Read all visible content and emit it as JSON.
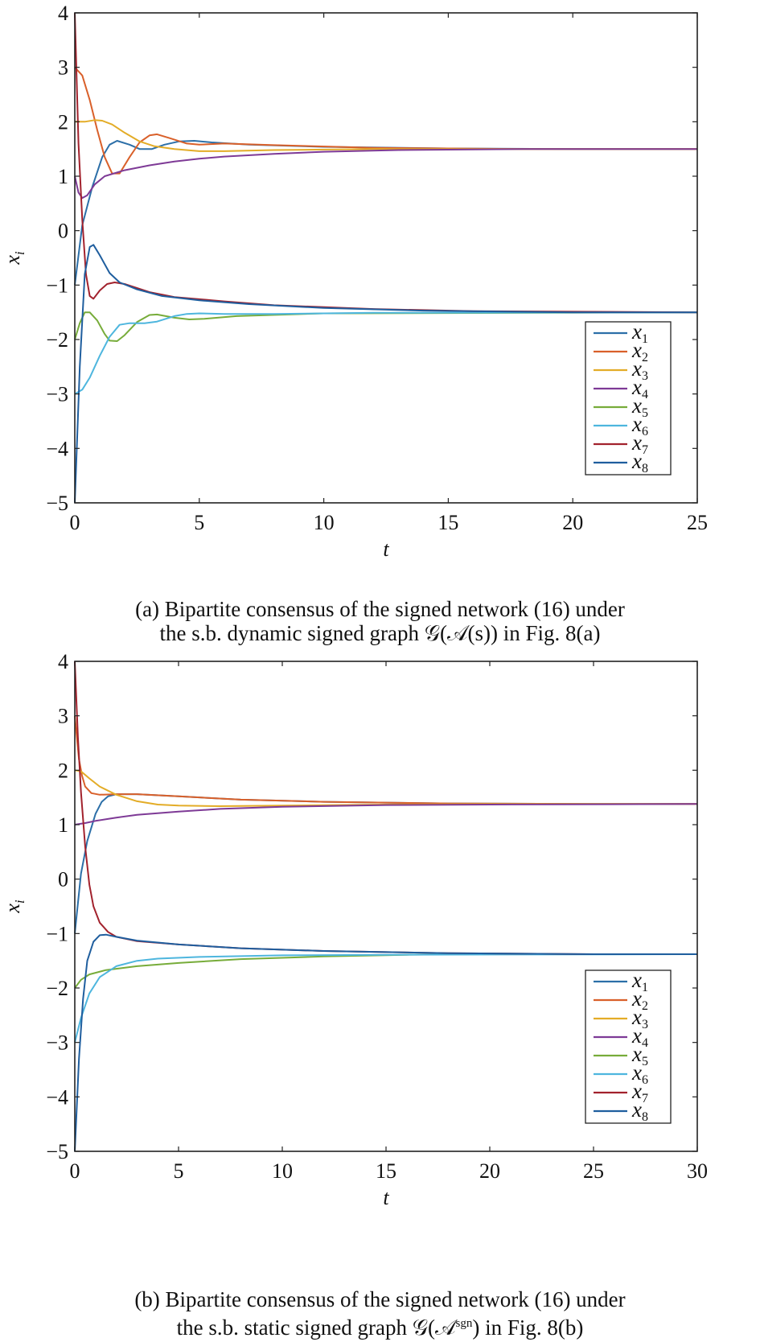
{
  "chart_data": [
    {
      "type": "line",
      "xlabel": "t",
      "ylabel": "x",
      "ylabel_sub": "i",
      "xlim": [
        0,
        25
      ],
      "ylim": [
        -5,
        4
      ],
      "xticks": [
        0,
        5,
        10,
        15,
        20,
        25
      ],
      "yticks": [
        -5,
        -4,
        -3,
        -2,
        -1,
        0,
        1,
        2,
        3,
        4
      ],
      "grid": false,
      "legend_position": "bottom-right",
      "caption_line1": "(a) Bipartite consensus of the signed network (16) under",
      "caption_line2": "the s.b. dynamic signed graph 𝒢(𝒜(s)) in Fig. 8(a)",
      "series": [
        {
          "name": "x",
          "sub": "1",
          "color": "#2C6FA8",
          "points": [
            [
              0,
              -1
            ],
            [
              0.3,
              0.1
            ],
            [
              0.7,
              0.8
            ],
            [
              1.1,
              1.35
            ],
            [
              1.4,
              1.58
            ],
            [
              1.7,
              1.65
            ],
            [
              2.2,
              1.58
            ],
            [
              2.6,
              1.5
            ],
            [
              3.1,
              1.5
            ],
            [
              3.6,
              1.58
            ],
            [
              4.2,
              1.64
            ],
            [
              4.8,
              1.65
            ],
            [
              5.5,
              1.62
            ],
            [
              7,
              1.58
            ],
            [
              10,
              1.54
            ],
            [
              15,
              1.51
            ],
            [
              20,
              1.5
            ],
            [
              25,
              1.5
            ]
          ]
        },
        {
          "name": "x",
          "sub": "2",
          "color": "#D9602A",
          "points": [
            [
              0,
              3
            ],
            [
              0.3,
              2.85
            ],
            [
              0.6,
              2.4
            ],
            [
              0.9,
              1.85
            ],
            [
              1.2,
              1.35
            ],
            [
              1.5,
              1.05
            ],
            [
              1.8,
              1.05
            ],
            [
              2.2,
              1.35
            ],
            [
              2.6,
              1.62
            ],
            [
              3,
              1.75
            ],
            [
              3.3,
              1.77
            ],
            [
              3.8,
              1.7
            ],
            [
              4.5,
              1.6
            ],
            [
              5,
              1.58
            ],
            [
              6,
              1.6
            ],
            [
              8,
              1.57
            ],
            [
              12,
              1.52
            ],
            [
              18,
              1.5
            ],
            [
              25,
              1.5
            ]
          ]
        },
        {
          "name": "x",
          "sub": "3",
          "color": "#E3AC27",
          "points": [
            [
              0,
              2
            ],
            [
              0.4,
              2
            ],
            [
              0.8,
              2.03
            ],
            [
              1.1,
              2.02
            ],
            [
              1.5,
              1.95
            ],
            [
              2,
              1.8
            ],
            [
              2.6,
              1.64
            ],
            [
              3.2,
              1.55
            ],
            [
              4,
              1.5
            ],
            [
              5,
              1.46
            ],
            [
              6,
              1.46
            ],
            [
              8,
              1.48
            ],
            [
              12,
              1.5
            ],
            [
              25,
              1.5
            ]
          ]
        },
        {
          "name": "x",
          "sub": "4",
          "color": "#7E3A96",
          "points": [
            [
              0,
              1
            ],
            [
              0.15,
              0.7
            ],
            [
              0.3,
              0.6
            ],
            [
              0.5,
              0.65
            ],
            [
              0.8,
              0.85
            ],
            [
              1.2,
              1
            ],
            [
              2,
              1.11
            ],
            [
              3,
              1.2
            ],
            [
              4,
              1.27
            ],
            [
              5,
              1.32
            ],
            [
              6,
              1.36
            ],
            [
              8,
              1.41
            ],
            [
              10,
              1.45
            ],
            [
              13,
              1.48
            ],
            [
              18,
              1.5
            ],
            [
              25,
              1.5
            ]
          ]
        },
        {
          "name": "x",
          "sub": "5",
          "color": "#77AC3A",
          "points": [
            [
              0,
              -2
            ],
            [
              0.2,
              -1.7
            ],
            [
              0.4,
              -1.5
            ],
            [
              0.6,
              -1.5
            ],
            [
              0.9,
              -1.65
            ],
            [
              1.2,
              -1.9
            ],
            [
              1.4,
              -2.02
            ],
            [
              1.7,
              -2.03
            ],
            [
              2,
              -1.92
            ],
            [
              2.5,
              -1.68
            ],
            [
              3,
              -1.55
            ],
            [
              3.3,
              -1.54
            ],
            [
              4,
              -1.6
            ],
            [
              4.6,
              -1.63
            ],
            [
              5.2,
              -1.62
            ],
            [
              6.5,
              -1.57
            ],
            [
              10,
              -1.52
            ],
            [
              25,
              -1.5
            ]
          ]
        },
        {
          "name": "x",
          "sub": "6",
          "color": "#4EB6DE",
          "points": [
            [
              0,
              -3
            ],
            [
              0.3,
              -2.92
            ],
            [
              0.6,
              -2.7
            ],
            [
              1,
              -2.3
            ],
            [
              1.4,
              -1.95
            ],
            [
              1.8,
              -1.73
            ],
            [
              2.2,
              -1.7
            ],
            [
              2.8,
              -1.7
            ],
            [
              3.3,
              -1.67
            ],
            [
              4,
              -1.57
            ],
            [
              4.5,
              -1.53
            ],
            [
              5,
              -1.52
            ],
            [
              6,
              -1.53
            ],
            [
              8,
              -1.53
            ],
            [
              12,
              -1.51
            ],
            [
              25,
              -1.5
            ]
          ]
        },
        {
          "name": "x",
          "sub": "7",
          "color": "#A2222D",
          "points": [
            [
              0,
              4
            ],
            [
              0.15,
              1.6
            ],
            [
              0.3,
              0.2
            ],
            [
              0.45,
              -0.8
            ],
            [
              0.6,
              -1.2
            ],
            [
              0.75,
              -1.25
            ],
            [
              1,
              -1.1
            ],
            [
              1.3,
              -0.98
            ],
            [
              1.6,
              -0.95
            ],
            [
              2,
              -0.98
            ],
            [
              3,
              -1.13
            ],
            [
              4,
              -1.22
            ],
            [
              6,
              -1.3
            ],
            [
              8,
              -1.37
            ],
            [
              12,
              -1.44
            ],
            [
              16,
              -1.48
            ],
            [
              25,
              -1.5
            ]
          ]
        },
        {
          "name": "x",
          "sub": "8",
          "color": "#1F5E9E",
          "points": [
            [
              0,
              -5
            ],
            [
              0.2,
              -2.5
            ],
            [
              0.4,
              -0.8
            ],
            [
              0.6,
              -0.3
            ],
            [
              0.75,
              -0.26
            ],
            [
              1,
              -0.45
            ],
            [
              1.4,
              -0.78
            ],
            [
              1.8,
              -0.95
            ],
            [
              2.5,
              -1.08
            ],
            [
              3.5,
              -1.2
            ],
            [
              5,
              -1.28
            ],
            [
              7,
              -1.35
            ],
            [
              10,
              -1.42
            ],
            [
              14,
              -1.47
            ],
            [
              20,
              -1.5
            ],
            [
              25,
              -1.5
            ]
          ]
        }
      ]
    },
    {
      "type": "line",
      "xlabel": "t",
      "ylabel": "x",
      "ylabel_sub": "i",
      "xlim": [
        0,
        30
      ],
      "ylim": [
        -5,
        4
      ],
      "xticks": [
        0,
        5,
        10,
        15,
        20,
        25,
        30
      ],
      "yticks": [
        -5,
        -4,
        -3,
        -2,
        -1,
        0,
        1,
        2,
        3,
        4
      ],
      "grid": false,
      "legend_position": "bottom-right",
      "caption_line1": "(b) Bipartite consensus of the signed network (16) under",
      "caption_line2_prefix": "the s.b. static signed graph 𝒢(𝒜",
      "caption_line2_sup": "sgn",
      "caption_line2_suffix": ") in Fig. 8(b)",
      "series": [
        {
          "name": "x",
          "sub": "1",
          "color": "#2C6FA8",
          "points": [
            [
              0,
              -1
            ],
            [
              0.3,
              0.1
            ],
            [
              0.6,
              0.7
            ],
            [
              1,
              1.2
            ],
            [
              1.3,
              1.42
            ],
            [
              1.6,
              1.52
            ],
            [
              2,
              1.56
            ],
            [
              3,
              1.56
            ],
            [
              5,
              1.52
            ],
            [
              8,
              1.46
            ],
            [
              12,
              1.42
            ],
            [
              18,
              1.39
            ],
            [
              25,
              1.38
            ],
            [
              30,
              1.38
            ]
          ]
        },
        {
          "name": "x",
          "sub": "2",
          "color": "#D9602A",
          "points": [
            [
              0,
              3
            ],
            [
              0.1,
              2.6
            ],
            [
              0.2,
              2.2
            ],
            [
              0.35,
              1.9
            ],
            [
              0.5,
              1.7
            ],
            [
              0.8,
              1.58
            ],
            [
              1.2,
              1.55
            ],
            [
              2,
              1.56
            ],
            [
              3,
              1.56
            ],
            [
              5,
              1.52
            ],
            [
              8,
              1.46
            ],
            [
              12,
              1.42
            ],
            [
              18,
              1.39
            ],
            [
              25,
              1.38
            ],
            [
              30,
              1.38
            ]
          ]
        },
        {
          "name": "x",
          "sub": "3",
          "color": "#E3AC27",
          "points": [
            [
              0,
              2
            ],
            [
              0.3,
              1.98
            ],
            [
              0.7,
              1.85
            ],
            [
              1.2,
              1.7
            ],
            [
              2,
              1.55
            ],
            [
              3,
              1.43
            ],
            [
              4,
              1.37
            ],
            [
              5,
              1.35
            ],
            [
              7,
              1.34
            ],
            [
              10,
              1.35
            ],
            [
              15,
              1.37
            ],
            [
              20,
              1.38
            ],
            [
              30,
              1.38
            ]
          ]
        },
        {
          "name": "x",
          "sub": "4",
          "color": "#7E3A96",
          "points": [
            [
              0,
              1
            ],
            [
              0.5,
              1.03
            ],
            [
              1,
              1.07
            ],
            [
              2,
              1.13
            ],
            [
              3,
              1.18
            ],
            [
              5,
              1.24
            ],
            [
              7,
              1.29
            ],
            [
              10,
              1.33
            ],
            [
              15,
              1.36
            ],
            [
              20,
              1.37
            ],
            [
              30,
              1.38
            ]
          ]
        },
        {
          "name": "x",
          "sub": "5",
          "color": "#77AC3A",
          "points": [
            [
              0,
              -2
            ],
            [
              0.3,
              -1.85
            ],
            [
              0.7,
              -1.75
            ],
            [
              1.5,
              -1.67
            ],
            [
              3,
              -1.6
            ],
            [
              5,
              -1.54
            ],
            [
              8,
              -1.47
            ],
            [
              12,
              -1.42
            ],
            [
              16,
              -1.39
            ],
            [
              20,
              -1.38
            ],
            [
              30,
              -1.38
            ]
          ]
        },
        {
          "name": "x",
          "sub": "6",
          "color": "#4EB6DE",
          "points": [
            [
              0,
              -3
            ],
            [
              0.3,
              -2.55
            ],
            [
              0.7,
              -2.1
            ],
            [
              1.2,
              -1.8
            ],
            [
              2,
              -1.6
            ],
            [
              3,
              -1.5
            ],
            [
              4,
              -1.46
            ],
            [
              6,
              -1.43
            ],
            [
              10,
              -1.4
            ],
            [
              15,
              -1.39
            ],
            [
              30,
              -1.38
            ]
          ]
        },
        {
          "name": "x",
          "sub": "7",
          "color": "#A2222D",
          "points": [
            [
              0,
              4
            ],
            [
              0.15,
              2.6
            ],
            [
              0.3,
              1.6
            ],
            [
              0.5,
              0.6
            ],
            [
              0.7,
              -0.1
            ],
            [
              0.9,
              -0.5
            ],
            [
              1.2,
              -0.8
            ],
            [
              1.6,
              -0.97
            ],
            [
              2,
              -1.06
            ],
            [
              3,
              -1.14
            ],
            [
              5,
              -1.2
            ],
            [
              8,
              -1.27
            ],
            [
              12,
              -1.32
            ],
            [
              18,
              -1.36
            ],
            [
              25,
              -1.38
            ],
            [
              30,
              -1.38
            ]
          ]
        },
        {
          "name": "x",
          "sub": "8",
          "color": "#1F5E9E",
          "points": [
            [
              0,
              -5
            ],
            [
              0.2,
              -3.3
            ],
            [
              0.4,
              -2.2
            ],
            [
              0.6,
              -1.5
            ],
            [
              0.9,
              -1.15
            ],
            [
              1.2,
              -1.03
            ],
            [
              1.5,
              -1.02
            ],
            [
              2,
              -1.06
            ],
            [
              3,
              -1.13
            ],
            [
              5,
              -1.2
            ],
            [
              8,
              -1.27
            ],
            [
              12,
              -1.32
            ],
            [
              18,
              -1.36
            ],
            [
              25,
              -1.38
            ],
            [
              30,
              -1.38
            ]
          ]
        }
      ]
    }
  ]
}
